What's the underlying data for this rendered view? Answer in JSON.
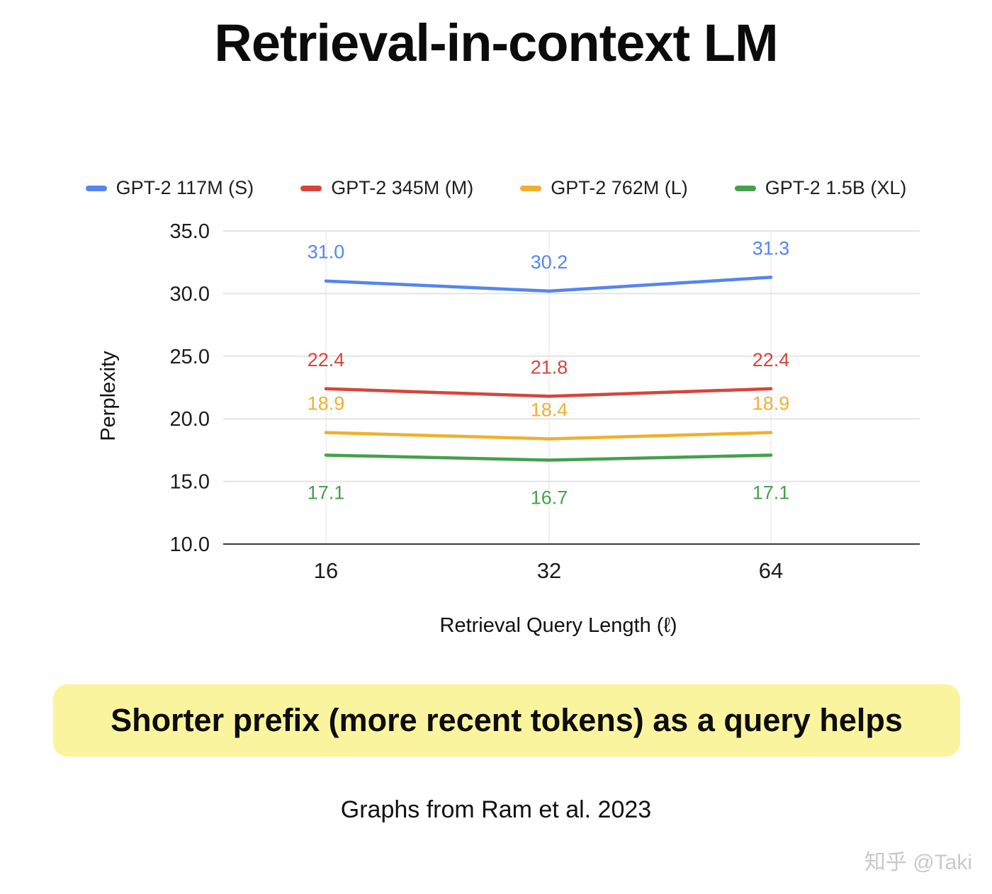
{
  "slide": {
    "title": "Retrieval-in-context LM",
    "highlight": "Shorter prefix (more recent tokens) as a query helps",
    "caption": "Graphs from Ram et al. 2023",
    "watermark": "知乎 @Taki"
  },
  "chart_data": {
    "type": "line",
    "categories": [
      "16",
      "32",
      "64"
    ],
    "series": [
      {
        "name": "GPT-2 117M (S)",
        "color": "#5585ee",
        "values": [
          31.0,
          30.2,
          31.3
        ],
        "label_position": "above"
      },
      {
        "name": "GPT-2 345M (M)",
        "color": "#d6453b",
        "values": [
          22.4,
          21.8,
          22.4
        ],
        "label_position": "above"
      },
      {
        "name": "GPT-2 762M (L)",
        "color": "#efb02e",
        "values": [
          18.9,
          18.4,
          18.9
        ],
        "label_position": "above"
      },
      {
        "name": "GPT-2 1.5B (XL)",
        "color": "#47a04b",
        "values": [
          17.1,
          16.7,
          17.1
        ],
        "label_position": "below"
      }
    ],
    "title": "",
    "xlabel": "Retrieval Query Length (ℓ)",
    "ylabel": "Perplexity",
    "ylim": [
      10,
      35
    ],
    "yticks": [
      10,
      15,
      20,
      25,
      30,
      35
    ],
    "legend_position": "top",
    "grid": true
  }
}
